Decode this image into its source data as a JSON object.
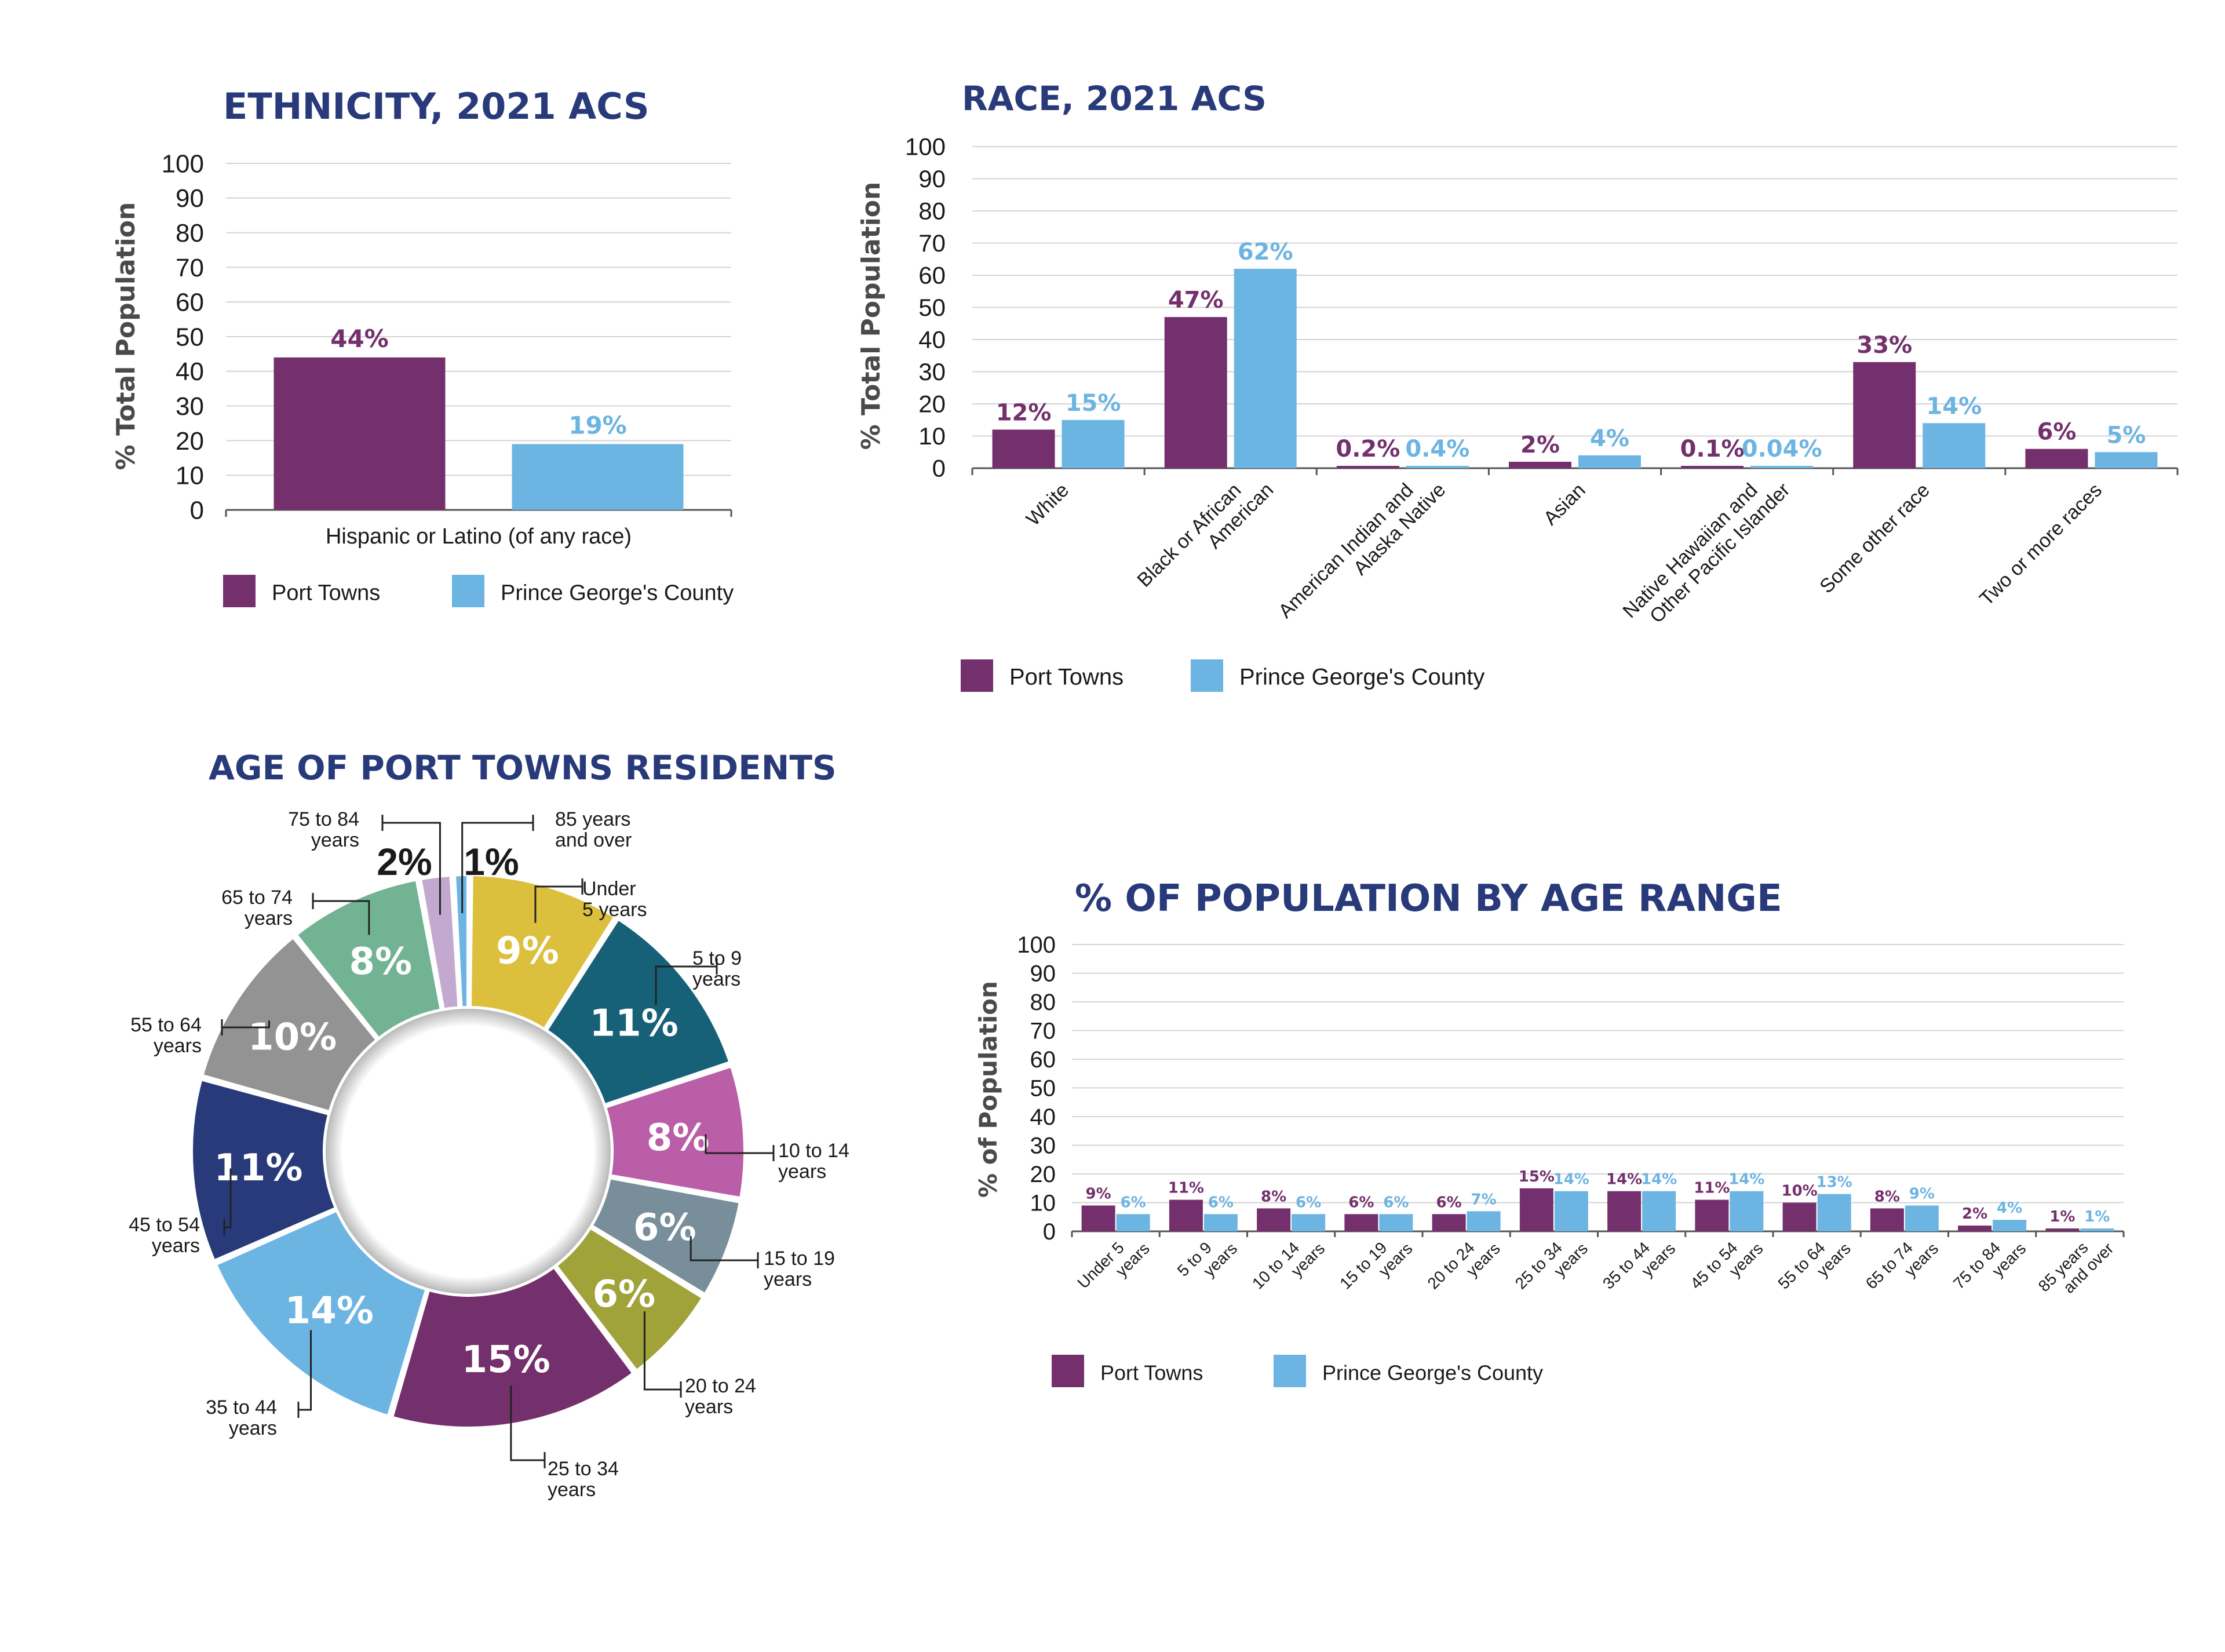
{
  "colors": {
    "port_towns": "#74306d",
    "county": "#6cb4e2",
    "title": "#283a7a"
  },
  "chart_data": [
    {
      "id": "ethnicity",
      "type": "bar",
      "title": "ETHNICITY, 2021 ACS",
      "ylabel": "% Total Population",
      "ylim": [
        0,
        100
      ],
      "yticks": [
        0,
        10,
        20,
        30,
        40,
        50,
        60,
        70,
        80,
        90,
        100
      ],
      "categories": [
        "Hispanic or Latino (of any race)"
      ],
      "series": [
        {
          "name": "Port Towns",
          "values": [
            44
          ],
          "labels": [
            "44%"
          ],
          "color": "#74306d"
        },
        {
          "name": "Prince George's County",
          "values": [
            19
          ],
          "labels": [
            "19%"
          ],
          "color": "#6cb4e2"
        }
      ],
      "legend": "bottom",
      "grid": true
    },
    {
      "id": "race",
      "type": "bar",
      "title": "RACE, 2021 ACS",
      "ylabel": "% Total Population",
      "ylim": [
        0,
        100
      ],
      "yticks": [
        0,
        10,
        20,
        30,
        40,
        50,
        60,
        70,
        80,
        90,
        100
      ],
      "categories": [
        [
          "White"
        ],
        [
          "Black or African",
          "American"
        ],
        [
          "American Indian and",
          "Alaska Native"
        ],
        [
          "Asian"
        ],
        [
          "Native Hawaiian and",
          "Other Pacific Islander"
        ],
        [
          "Some other race"
        ],
        [
          "Two or more races"
        ]
      ],
      "series": [
        {
          "name": "Port Towns",
          "values": [
            12,
            47,
            0.2,
            2,
            0.1,
            33,
            6
          ],
          "labels": [
            "12%",
            "47%",
            "0.2%",
            "2%",
            "0.1%",
            "33%",
            "6%"
          ],
          "color": "#74306d"
        },
        {
          "name": "Prince George's County",
          "values": [
            15,
            62,
            0.4,
            4,
            0.04,
            14,
            5
          ],
          "labels": [
            "15%",
            "62%",
            "0.4%",
            "4%",
            "0.04%",
            "14%",
            "5%"
          ],
          "color": "#6cb4e2"
        }
      ],
      "legend": "bottom",
      "grid": true
    },
    {
      "id": "age-donut",
      "type": "pie",
      "title": "AGE OF PORT TOWNS RESIDENTS",
      "slices": [
        {
          "label": [
            "Under",
            "5 years"
          ],
          "value": 9,
          "text": "9%",
          "color": "#dcbf3c",
          "side": "right"
        },
        {
          "label": [
            "5 to 9",
            "years"
          ],
          "value": 11,
          "text": "11%",
          "color": "#176178",
          "side": "right"
        },
        {
          "label": [
            "10 to 14",
            "years"
          ],
          "value": 8,
          "text": "8%",
          "color": "#ba5ea8",
          "side": "right"
        },
        {
          "label": [
            "15 to 19",
            "years"
          ],
          "value": 6,
          "text": "6%",
          "color": "#788e9a",
          "side": "right"
        },
        {
          "label": [
            "20 to 24",
            "years"
          ],
          "value": 6,
          "text": "6%",
          "color": "#a0a33a",
          "side": "right"
        },
        {
          "label": [
            "25 to 34",
            "years"
          ],
          "value": 15,
          "text": "15%",
          "color": "#74306d",
          "side": "right"
        },
        {
          "label": [
            "35 to 44",
            "years"
          ],
          "value": 14,
          "text": "14%",
          "color": "#6cb4e2",
          "side": "left"
        },
        {
          "label": [
            "45 to 54",
            "years"
          ],
          "value": 11,
          "text": "11%",
          "color": "#283a7a",
          "side": "left"
        },
        {
          "label": [
            "55 to 64",
            "years"
          ],
          "value": 10,
          "text": "10%",
          "color": "#939393",
          "side": "left"
        },
        {
          "label": [
            "65 to 74",
            "years"
          ],
          "value": 8,
          "text": "8%",
          "color": "#72b393",
          "side": "left"
        },
        {
          "label": [
            "75 to 84",
            "years"
          ],
          "value": 2,
          "text": "2%",
          "color": "#c3a9cf",
          "side": "left"
        },
        {
          "label": [
            "85 years",
            "and over"
          ],
          "value": 1,
          "text": "1%",
          "color": "#6cb4e2",
          "side": "right"
        }
      ]
    },
    {
      "id": "age-range",
      "type": "bar",
      "title": "% OF POPULATION BY AGE RANGE",
      "ylabel": "% of Population",
      "ylim": [
        0,
        100
      ],
      "yticks": [
        0,
        10,
        20,
        30,
        40,
        50,
        60,
        70,
        80,
        90,
        100
      ],
      "categories": [
        [
          "Under 5",
          "years"
        ],
        [
          "5 to 9",
          "years"
        ],
        [
          "10 to 14",
          "years"
        ],
        [
          "15 to 19",
          "years"
        ],
        [
          "20 to 24",
          "years"
        ],
        [
          "25 to 34",
          "years"
        ],
        [
          "35 to 44",
          "years"
        ],
        [
          "45 to 54",
          "years"
        ],
        [
          "55 to 64",
          "years"
        ],
        [
          "65 to 74",
          "years"
        ],
        [
          "75 to 84",
          "years"
        ],
        [
          "85 years",
          "and over"
        ]
      ],
      "series": [
        {
          "name": "Port Towns",
          "values": [
            9,
            11,
            8,
            6,
            6,
            15,
            14,
            11,
            10,
            8,
            2,
            1
          ],
          "labels": [
            "9%",
            "11%",
            "8%",
            "6%",
            "6%",
            "15%",
            "14%",
            "11%",
            "10%",
            "8%",
            "2%",
            "1%"
          ],
          "color": "#74306d"
        },
        {
          "name": "Prince George's County",
          "values": [
            6,
            6,
            6,
            6,
            7,
            14,
            14,
            14,
            13,
            9,
            4,
            1
          ],
          "labels": [
            "6%",
            "6%",
            "6%",
            "6%",
            "7%",
            "14%",
            "14%",
            "14%",
            "13%",
            "9%",
            "4%",
            "1%"
          ],
          "color": "#6cb4e2"
        }
      ],
      "legend": "bottom",
      "grid": true
    }
  ]
}
